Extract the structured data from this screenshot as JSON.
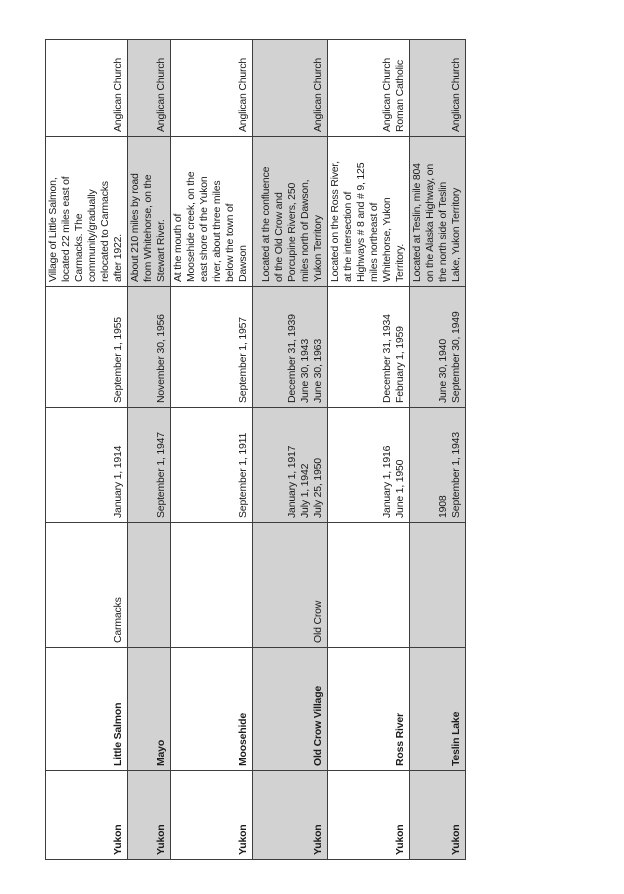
{
  "colors": {
    "row_shading": "#d2d2d2",
    "border": "#3d3d3d",
    "text": "#1c1c1c"
  },
  "table": {
    "rows": [
      {
        "territory": "Yukon",
        "name": "Little Salmon",
        "place": "Carmacks",
        "opened": "January 1, 1914",
        "closed": "September 1, 1955",
        "description": "Village of Little Salmon,\nlocated 22 miles east of\nCarmacks. The\ncommunity/gradually\nrelocated to Carmacks\nafter 1922.",
        "church": "Anglican Church"
      },
      {
        "territory": "Yukon",
        "name": "Mayo",
        "place": "",
        "opened": "September 1, 1947",
        "closed": "November 30, 1956",
        "description": "About 210 miles by road\nfrom Whitehorse, on the\nStewart River.",
        "church": "Anglican Church"
      },
      {
        "territory": "Yukon",
        "name": "Moosehide",
        "place": "",
        "opened": "September 1, 1911",
        "closed": "September 1, 1957",
        "description": "At the mouth of\nMoosehide creek, on the\neast shore of the Yukon\nriver, about three miles\nbelow the town of\nDawson",
        "church": "Anglican Church"
      },
      {
        "territory": "Yukon",
        "name": "Old Crow Village",
        "place": "Old Crow",
        "opened": "January 1, 1917\nJuly 1, 1942\nJuly 25, 1950",
        "closed": "December 31, 1939\nJune 30, 1943\nJune 30, 1963",
        "description": "Located at the confluence\nof the Old Crow and\nPorcupine Rivers, 250\nmiles north of Dawson,\nYukon Territory",
        "church": "Anglican Church"
      },
      {
        "territory": "Yukon",
        "name": "Ross River",
        "place": "",
        "opened": "January 1, 1916\nJune 1, 1950",
        "closed": "December 31, 1934\nFebruary 1, 1959",
        "description": "Located on the Ross River,\nat the intersection of\nHighways # 8 and # 9, 125\nmiles northeast of\nWhitehorse, Yukon\nTerritory.",
        "church": "Anglican Church\nRoman Catholic"
      },
      {
        "territory": "Yukon",
        "name": "Teslin Lake",
        "place": "",
        "opened": "1908\nSeptember 1, 1943",
        "closed": "June 30, 1940\nSeptember 30, 1949",
        "description": "Located at Teslin, mile 804\non the Alaska Highway, on\nthe north side of Teslin\nLake, Yukon Territory",
        "church": "Anglican Church"
      }
    ]
  }
}
